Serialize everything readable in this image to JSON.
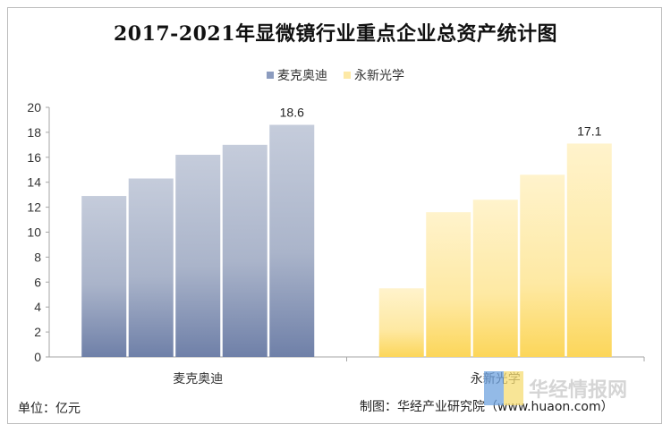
{
  "title": "2017-2021年显微镜行业重点企业总资产统计图",
  "footer": {
    "unit": "单位：亿元",
    "source": "制图：华经产业研究院（www.huaon.com）"
  },
  "watermark": "华经情报网",
  "colors": {
    "series1_top": "#c5ccdb",
    "series1_bottom": "#6f80a8",
    "series2_top": "#fff3cc",
    "series2_bottom": "#fcd65a",
    "legend1": "#8c9cbf",
    "legend2": "#fde9a6"
  },
  "chart_data": {
    "type": "bar",
    "groups": [
      "麦克奥迪",
      "永新光学"
    ],
    "series": [
      {
        "name": "麦克奥迪",
        "values": [
          12.9,
          14.3,
          16.2,
          17.0,
          18.6
        ]
      },
      {
        "name": "永新光学",
        "values": [
          5.5,
          11.6,
          12.6,
          14.6,
          17.1
        ]
      }
    ],
    "data_labels": [
      "18.6",
      "17.1"
    ],
    "yticks": [
      "0",
      "2",
      "4",
      "6",
      "8",
      "10",
      "12",
      "14",
      "16",
      "18",
      "20"
    ],
    "ylim": [
      0,
      20
    ],
    "legend_position": "top",
    "grid": false
  }
}
